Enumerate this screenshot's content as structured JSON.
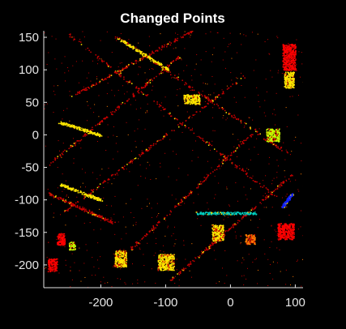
{
  "chart_data": {
    "type": "scatter",
    "title": "Changed Points",
    "xlabel": "",
    "ylabel": "",
    "xlim": [
      -288,
      112
    ],
    "ylim": [
      -235,
      160
    ],
    "xticks": [
      -200,
      -100,
      0,
      100
    ],
    "yticks": [
      150,
      100,
      50,
      0,
      -50,
      -100,
      -150,
      -200
    ],
    "xtick_labels": [
      "-200",
      "-100",
      "0",
      "100"
    ],
    "ytick_labels": [
      "150",
      "100",
      "50",
      "0",
      "-50",
      "-100",
      "-150",
      "-200"
    ],
    "grid": false,
    "background": "#000000",
    "axis_color": "#e6e6e6",
    "colormap": [
      "#c80000",
      "#ff0000",
      "#ff7a00",
      "#ffe600",
      "#c8ff00",
      "#00ff40",
      "#00d0c0",
      "#0080ff",
      "#1020ff"
    ],
    "note_series": "Point cloud of changed lidar points colored by change magnitude; dominant structure is a rotated (~45°) street grid.",
    "structures": [
      {
        "kind": "line",
        "from": [
          -250,
          155
        ],
        "to": [
          70,
          -95
        ],
        "color": "#c80000"
      },
      {
        "kind": "line",
        "from": [
          -180,
          155
        ],
        "to": [
          90,
          -30
        ],
        "color": "#c80000"
      },
      {
        "kind": "line",
        "from": [
          -245,
          60
        ],
        "to": [
          -60,
          160
        ],
        "color": "#c80000"
      },
      {
        "kind": "line",
        "from": [
          -280,
          -45
        ],
        "to": [
          -80,
          120
        ],
        "color": "#c80000"
      },
      {
        "kind": "line",
        "from": [
          -260,
          -120
        ],
        "to": [
          20,
          90
        ],
        "color": "#c80000"
      },
      {
        "kind": "line",
        "from": [
          -180,
          -200
        ],
        "to": [
          40,
          10
        ],
        "color": "#c80000"
      },
      {
        "kind": "line",
        "from": [
          -95,
          -225
        ],
        "to": [
          95,
          -60
        ],
        "color": "#c80000"
      },
      {
        "kind": "line",
        "from": [
          -280,
          -90
        ],
        "to": [
          -180,
          -135
        ],
        "color": "#c80000"
      },
      {
        "kind": "line",
        "from": [
          -175,
          150
        ],
        "to": [
          -95,
          100
        ],
        "color": "#ffe600"
      },
      {
        "kind": "line",
        "from": [
          -265,
          20
        ],
        "to": [
          -200,
          0
        ],
        "color": "#ffe600"
      },
      {
        "kind": "line",
        "from": [
          -265,
          -75
        ],
        "to": [
          -200,
          -100
        ],
        "color": "#ffe600"
      },
      {
        "kind": "line",
        "from": [
          -55,
          -120
        ],
        "to": [
          40,
          -120
        ],
        "color": "#00d0c0"
      },
      {
        "kind": "line",
        "from": [
          80,
          -110
        ],
        "to": [
          95,
          -90
        ],
        "color": "#1020ff"
      },
      {
        "kind": "blob",
        "center": [
          85,
          -148
        ],
        "size": [
          25,
          25
        ],
        "color": "#ff0000"
      },
      {
        "kind": "blob",
        "center": [
          -262,
          -160
        ],
        "size": [
          12,
          18
        ],
        "color": "#ff0000"
      },
      {
        "kind": "blob",
        "center": [
          -275,
          -200
        ],
        "size": [
          14,
          20
        ],
        "color": "#ff0000"
      },
      {
        "kind": "blob",
        "center": [
          90,
          120
        ],
        "size": [
          20,
          40
        ],
        "color": "#ff0000"
      },
      {
        "kind": "blob",
        "center": [
          -20,
          -150
        ],
        "size": [
          18,
          25
        ],
        "color": "#ffe600"
      },
      {
        "kind": "blob",
        "center": [
          -170,
          -190
        ],
        "size": [
          18,
          25
        ],
        "color": "#ffe600"
      },
      {
        "kind": "blob",
        "center": [
          -100,
          -195
        ],
        "size": [
          25,
          25
        ],
        "color": "#ffe600"
      },
      {
        "kind": "blob",
        "center": [
          -60,
          55
        ],
        "size": [
          25,
          15
        ],
        "color": "#ffe600"
      },
      {
        "kind": "blob",
        "center": [
          90,
          85
        ],
        "size": [
          15,
          25
        ],
        "color": "#ffe600"
      },
      {
        "kind": "blob",
        "center": [
          65,
          0
        ],
        "size": [
          20,
          20
        ],
        "color": "#c8ff00"
      },
      {
        "kind": "blob",
        "center": [
          -245,
          -170
        ],
        "size": [
          10,
          12
        ],
        "color": "#c8ff00"
      },
      {
        "kind": "blob",
        "center": [
          30,
          -160
        ],
        "size": [
          15,
          15
        ],
        "color": "#ff7a00"
      }
    ]
  }
}
